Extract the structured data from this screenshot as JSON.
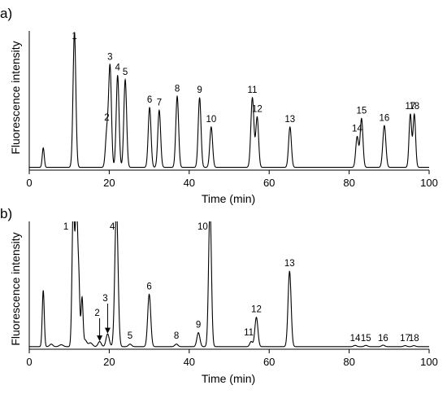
{
  "chart_data": [
    {
      "type": "line",
      "panel_label": "a)",
      "xlabel": "Time (min)",
      "ylabel": "Fluorescence intensity",
      "xlim": [
        0,
        100
      ],
      "x_ticks": [
        "0",
        "20",
        "40",
        "60",
        "80",
        "100"
      ],
      "grid": false,
      "y_range": [
        0,
        100
      ],
      "baseline": 2,
      "peaks": [
        {
          "x": 3.5,
          "height": 14,
          "width": 0.25,
          "label": ""
        },
        {
          "x": 11.3,
          "height": 97,
          "width": 0.35,
          "label": "1"
        },
        {
          "x": 19.4,
          "height": 25,
          "width": 0.35,
          "label": "2"
        },
        {
          "x": 20.2,
          "height": 72,
          "width": 0.35,
          "label": "3"
        },
        {
          "x": 22.1,
          "height": 66,
          "width": 0.35,
          "label": "4"
        },
        {
          "x": 24.0,
          "height": 63,
          "width": 0.35,
          "label": "5"
        },
        {
          "x": 30.1,
          "height": 43,
          "width": 0.35,
          "label": "6"
        },
        {
          "x": 32.5,
          "height": 41,
          "width": 0.35,
          "label": "7"
        },
        {
          "x": 37.0,
          "height": 51,
          "width": 0.35,
          "label": "8"
        },
        {
          "x": 42.6,
          "height": 50,
          "width": 0.35,
          "label": "9"
        },
        {
          "x": 45.5,
          "height": 29,
          "width": 0.35,
          "label": "10"
        },
        {
          "x": 55.8,
          "height": 50,
          "width": 0.38,
          "label": "11"
        },
        {
          "x": 57.0,
          "height": 36,
          "width": 0.35,
          "label": "12"
        },
        {
          "x": 65.2,
          "height": 29,
          "width": 0.35,
          "label": "13"
        },
        {
          "x": 82.0,
          "height": 22,
          "width": 0.35,
          "label": "14"
        },
        {
          "x": 83.1,
          "height": 35,
          "width": 0.35,
          "label": "15"
        },
        {
          "x": 88.8,
          "height": 30,
          "width": 0.38,
          "label": "16"
        },
        {
          "x": 95.3,
          "height": 38,
          "width": 0.32,
          "label": "17"
        },
        {
          "x": 96.3,
          "height": 38,
          "width": 0.32,
          "label": "18"
        }
      ]
    },
    {
      "type": "line",
      "panel_label": "b)",
      "xlabel": "Time (min)",
      "ylabel": "Fluorescence intensity",
      "xlim": [
        0,
        100
      ],
      "x_ticks": [
        "0",
        "20",
        "40",
        "60",
        "80",
        "100"
      ],
      "grid": false,
      "y_range": [
        0,
        100
      ],
      "baseline": 2,
      "peaks": [
        {
          "x": 3.5,
          "height": 44,
          "width": 0.25,
          "label": ""
        },
        {
          "x": 5.5,
          "height": 2,
          "width": 0.4,
          "label": ""
        },
        {
          "x": 8.0,
          "height": 1.5,
          "width": 0.5,
          "label": ""
        },
        {
          "x": 11.0,
          "height": 110,
          "width": 0.3,
          "label": "1"
        },
        {
          "x": 11.8,
          "height": 110,
          "width": 0.3,
          "label": ""
        },
        {
          "x": 12.4,
          "height": 47,
          "width": 0.25,
          "label": ""
        },
        {
          "x": 13.2,
          "height": 38,
          "width": 0.25,
          "label": ""
        },
        {
          "x": 14.0,
          "height": 5,
          "width": 0.4,
          "label": ""
        },
        {
          "x": 15.3,
          "height": 3,
          "width": 0.5,
          "label": ""
        },
        {
          "x": 17.6,
          "height": 4,
          "width": 0.4,
          "label": "2"
        },
        {
          "x": 19.6,
          "height": 10,
          "width": 0.4,
          "label": "3"
        },
        {
          "x": 21.8,
          "height": 110,
          "width": 0.4,
          "label": "4"
        },
        {
          "x": 25.2,
          "height": 2,
          "width": 0.4,
          "label": "5"
        },
        {
          "x": 30.0,
          "height": 41,
          "width": 0.38,
          "label": "6"
        },
        {
          "x": 36.8,
          "height": 2,
          "width": 0.4,
          "label": "8"
        },
        {
          "x": 42.3,
          "height": 11,
          "width": 0.38,
          "label": "9"
        },
        {
          "x": 45.2,
          "height": 110,
          "width": 0.35,
          "label": "10"
        },
        {
          "x": 55.5,
          "height": 4,
          "width": 0.35,
          "label": "11"
        },
        {
          "x": 56.8,
          "height": 23,
          "width": 0.38,
          "label": "12"
        },
        {
          "x": 65.1,
          "height": 59,
          "width": 0.38,
          "label": "13"
        },
        {
          "x": 81.5,
          "height": 1,
          "width": 0.4,
          "label": "14"
        },
        {
          "x": 84.2,
          "height": 1,
          "width": 0.4,
          "label": "15"
        },
        {
          "x": 88.5,
          "height": 1.2,
          "width": 0.4,
          "label": "16"
        },
        {
          "x": 94.0,
          "height": 0.8,
          "width": 0.4,
          "label": "17"
        },
        {
          "x": 96.2,
          "height": 0.8,
          "width": 0.4,
          "label": "18"
        }
      ],
      "annotations": [
        {
          "text": "2",
          "arrow_to_x": 17.6
        },
        {
          "text": "3",
          "arrow_to_x": 19.6
        }
      ]
    }
  ]
}
